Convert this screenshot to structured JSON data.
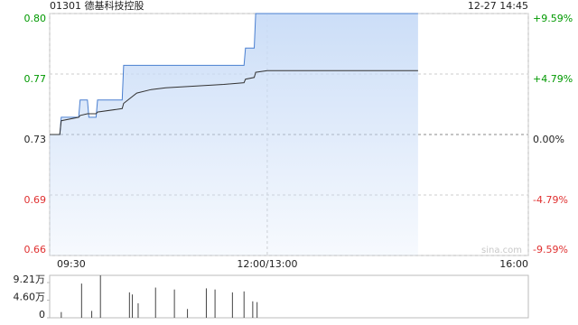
{
  "chart_data": [
    {
      "type": "line",
      "title": "01301 德基科技控股",
      "timestamp": "12-27 14:45",
      "watermark": "sina.com",
      "x": [
        0,
        7,
        8,
        20,
        21,
        26,
        27,
        32,
        33,
        50,
        51,
        60,
        70,
        80,
        100,
        120,
        134,
        135,
        141,
        142,
        150,
        180,
        220,
        254
      ],
      "xlim": [
        0,
        330
      ],
      "xticks": [
        {
          "value": 0,
          "label": "09:30"
        },
        {
          "value": 150,
          "label": "12:00/13:00"
        },
        {
          "value": 330,
          "label": "16:00"
        }
      ],
      "ylim": [
        0.66,
        0.8
      ],
      "yticks": [
        {
          "value": 0.8,
          "label": "0.80"
        },
        {
          "value": 0.765,
          "label": "0.77"
        },
        0.73,
        {
          "value": 0.695,
          "label": "0.69"
        },
        {
          "value": 0.66,
          "label": "0.66"
        }
      ],
      "y2lim": [
        -9.59,
        9.59
      ],
      "y2ticks": [
        {
          "value": 9.59,
          "label": "+9.59%"
        },
        {
          "value": 4.79,
          "label": "+4.79%"
        },
        {
          "value": 0,
          "label": "0.00%"
        },
        {
          "value": -4.79,
          "label": "-4.79%"
        },
        {
          "value": -9.59,
          "label": "-9.59%"
        }
      ],
      "up_color": "#009900",
      "down_color": "#e03030",
      "series": [
        {
          "color": "#4a7fd0",
          "fill": "#c9dcf7",
          "values": [
            0.73,
            0.73,
            0.74,
            0.74,
            0.75,
            0.75,
            0.74,
            0.74,
            0.75,
            0.75,
            0.77,
            0.77,
            0.77,
            0.77,
            0.77,
            0.77,
            0.77,
            0.78,
            0.78,
            0.8,
            0.8,
            0.8,
            0.8,
            0.8
          ]
        },
        {
          "color": "#333333",
          "values": [
            0.73,
            0.73,
            0.738,
            0.74,
            0.741,
            0.742,
            0.742,
            0.742,
            0.743,
            0.745,
            0.748,
            0.754,
            0.756,
            0.757,
            0.758,
            0.759,
            0.76,
            0.762,
            0.763,
            0.766,
            0.767,
            0.767,
            0.767,
            0.767
          ]
        }
      ]
    },
    {
      "type": "bar",
      "x": [
        8,
        22,
        29,
        35,
        55,
        57,
        61,
        73,
        86,
        95,
        108,
        114,
        126,
        134,
        140,
        143
      ],
      "values": [
        15000,
        89500,
        18000,
        111000,
        66500,
        61000,
        38000,
        79000,
        74000,
        23000,
        77000,
        74000,
        66500,
        69000,
        43000,
        41000
      ],
      "color": "#444444",
      "xlim": [
        0,
        330
      ],
      "ylim": [
        0,
        111000
      ],
      "yticks": [
        {
          "value": 92100,
          "label": "9.21万"
        },
        {
          "value": 46000,
          "label": "4.60万"
        },
        0
      ]
    }
  ]
}
